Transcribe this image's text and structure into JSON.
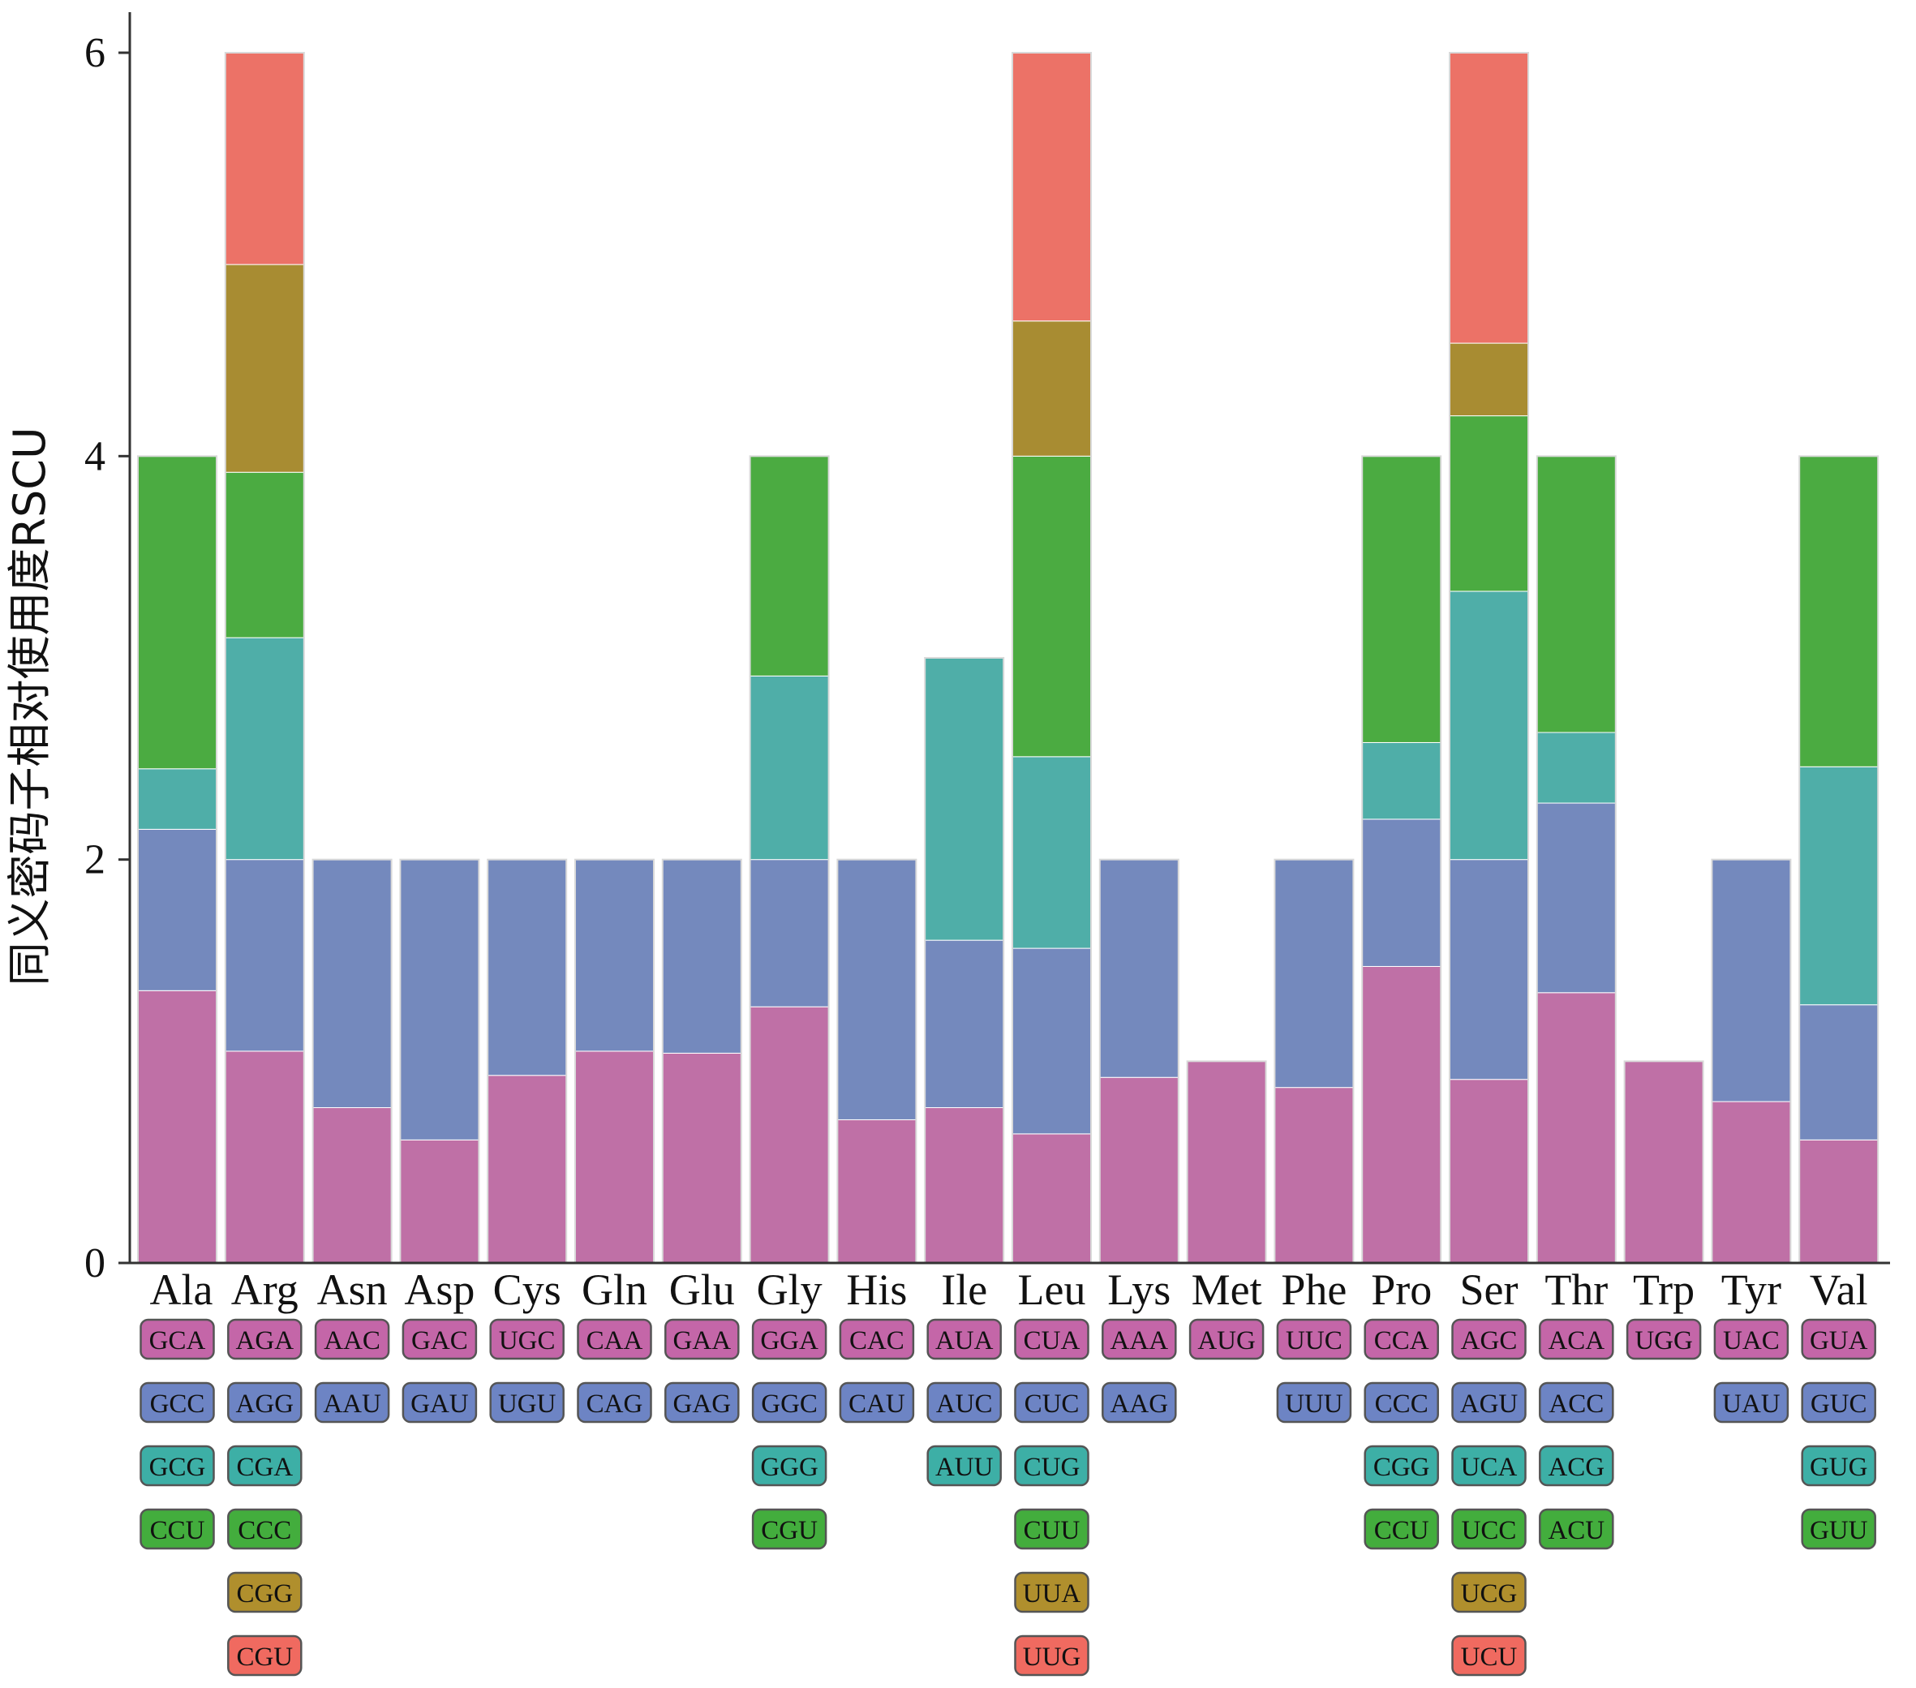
{
  "chart_data": {
    "type": "bar",
    "stacked": true,
    "title": "",
    "xlabel": "",
    "ylabel": "同义密码子相对使用度RSCU",
    "ylim": [
      0,
      6
    ],
    "yticks": [
      0,
      2,
      4,
      6
    ],
    "grid": false,
    "layer_colors": [
      "#bf70a6",
      "#7489bd",
      "#4faea8",
      "#4bab41",
      "#a88c32",
      "#ec7267"
    ],
    "tile_colors": [
      "#c466a8",
      "#6d84c4",
      "#3dafa6",
      "#43ad3d",
      "#b08f2d",
      "#f06a60"
    ],
    "categories": [
      "Ala",
      "Arg",
      "Asn",
      "Asp",
      "Cys",
      "Gln",
      "Glu",
      "Gly",
      "His",
      "Ile",
      "Leu",
      "Lys",
      "Met",
      "Phe",
      "Pro",
      "Ser",
      "Thr",
      "Trp",
      "Tyr",
      "Val"
    ],
    "bars": [
      {
        "aa": "Ala",
        "codons": [
          "GCA",
          "GCC",
          "GCG",
          "CCU"
        ],
        "values": [
          1.35,
          0.8,
          0.3,
          1.55
        ]
      },
      {
        "aa": "Arg",
        "codons": [
          "AGA",
          "AGG",
          "CGA",
          "CCC",
          "CGG",
          "CGU"
        ],
        "values": [
          1.05,
          0.95,
          1.1,
          0.82,
          1.03,
          1.05
        ]
      },
      {
        "aa": "Asn",
        "codons": [
          "AAC",
          "AAU"
        ],
        "values": [
          0.77,
          1.23
        ]
      },
      {
        "aa": "Asp",
        "codons": [
          "GAC",
          "GAU"
        ],
        "values": [
          0.61,
          1.39
        ]
      },
      {
        "aa": "Cys",
        "codons": [
          "UGC",
          "UGU"
        ],
        "values": [
          0.93,
          1.07
        ]
      },
      {
        "aa": "Gln",
        "codons": [
          "CAA",
          "CAG"
        ],
        "values": [
          1.05,
          0.95
        ]
      },
      {
        "aa": "Glu",
        "codons": [
          "GAA",
          "GAG"
        ],
        "values": [
          1.04,
          0.96
        ]
      },
      {
        "aa": "Gly",
        "codons": [
          "GGA",
          "GGC",
          "GGG",
          "CGU"
        ],
        "values": [
          1.27,
          0.73,
          0.91,
          1.09
        ]
      },
      {
        "aa": "His",
        "codons": [
          "CAC",
          "CAU"
        ],
        "values": [
          0.71,
          1.29
        ]
      },
      {
        "aa": "Ile",
        "codons": [
          "AUA",
          "AUC",
          "AUU"
        ],
        "values": [
          0.77,
          0.83,
          1.4
        ]
      },
      {
        "aa": "Leu",
        "codons": [
          "CUA",
          "CUC",
          "CUG",
          "CUU",
          "UUA",
          "UUG"
        ],
        "values": [
          0.64,
          0.92,
          0.95,
          1.49,
          0.67,
          1.33
        ]
      },
      {
        "aa": "Lys",
        "codons": [
          "AAA",
          "AAG"
        ],
        "values": [
          0.92,
          1.08
        ]
      },
      {
        "aa": "Met",
        "codons": [
          "AUG"
        ],
        "values": [
          1.0
        ]
      },
      {
        "aa": "Phe",
        "codons": [
          "UUC",
          "UUU"
        ],
        "values": [
          0.87,
          1.13
        ]
      },
      {
        "aa": "Pro",
        "codons": [
          "CCA",
          "CCC",
          "CGG",
          "CCU"
        ],
        "values": [
          1.47,
          0.73,
          0.38,
          1.42
        ]
      },
      {
        "aa": "Ser",
        "codons": [
          "AGC",
          "AGU",
          "UCA",
          "UCC",
          "UCG",
          "UCU"
        ],
        "values": [
          0.91,
          1.09,
          1.33,
          0.87,
          0.36,
          1.44
        ]
      },
      {
        "aa": "Thr",
        "codons": [
          "ACA",
          "ACC",
          "ACG",
          "ACU"
        ],
        "values": [
          1.34,
          0.94,
          0.35,
          1.37
        ]
      },
      {
        "aa": "Trp",
        "codons": [
          "UGG"
        ],
        "values": [
          1.0
        ]
      },
      {
        "aa": "Tyr",
        "codons": [
          "UAC",
          "UAU"
        ],
        "values": [
          0.8,
          1.2
        ]
      },
      {
        "aa": "Val",
        "codons": [
          "GUA",
          "GUC",
          "GUG",
          "GUU"
        ],
        "values": [
          0.61,
          0.67,
          1.18,
          1.54
        ]
      }
    ]
  }
}
